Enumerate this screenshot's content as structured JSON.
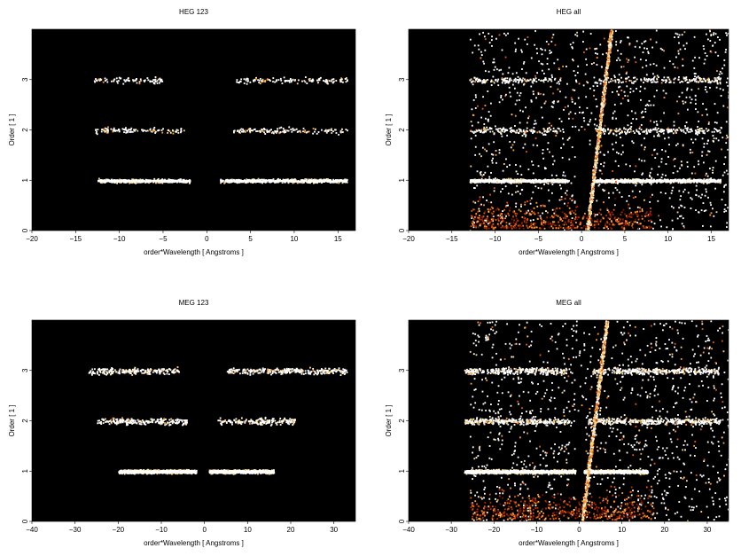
{
  "chart_data": [
    {
      "type": "heatmap",
      "title": "HEG 123",
      "xlabel": "order*Wavelength [ Angstroms ]",
      "ylabel": "Order [ 1 ]",
      "xlim": [
        -20,
        17
      ],
      "ylim": [
        0,
        4
      ],
      "xticks": [
        -20,
        -15,
        -10,
        -5,
        0,
        5,
        10,
        15
      ],
      "yticks": [
        0,
        1,
        2,
        3
      ],
      "background": "#000000",
      "bands": [
        {
          "order": 1,
          "segments": [
            [
              -12.5,
              -2
            ],
            [
              1.5,
              16
            ]
          ],
          "intensity": "high"
        },
        {
          "order": 2,
          "segments": [
            [
              -13,
              -2.5
            ],
            [
              3,
              16
            ]
          ],
          "intensity": "low"
        },
        {
          "order": 3,
          "segments": [
            [
              -13,
              -5
            ],
            [
              3,
              16
            ]
          ],
          "intensity": "low"
        }
      ],
      "diagonal_streak": false
    },
    {
      "type": "heatmap",
      "title": "HEG all",
      "xlabel": "order*Wavelength [ Angstroms ]",
      "ylabel": "Order [ 1 ]",
      "xlim": [
        -20,
        17
      ],
      "ylim": [
        0,
        4
      ],
      "xticks": [
        -20,
        -15,
        -10,
        -5,
        0,
        5,
        10,
        15
      ],
      "yticks": [
        0,
        1,
        2,
        3
      ],
      "background": "#000000",
      "bands": [
        {
          "order": 1,
          "segments": [
            [
              -13,
              -1.5
            ],
            [
              1.5,
              16
            ]
          ],
          "intensity": "high"
        },
        {
          "order": 2,
          "segments": [
            [
              -13,
              -2.5
            ],
            [
              1.5,
              16
            ]
          ],
          "intensity": "low"
        },
        {
          "order": 3,
          "segments": [
            [
              -13,
              -2.5
            ],
            [
              1.5,
              16
            ]
          ],
          "intensity": "low"
        }
      ],
      "diagonal_streak": true
    },
    {
      "type": "heatmap",
      "title": "MEG 123",
      "xlabel": "order*Wavelength [ Angstroms ]",
      "ylabel": "Order [ 1 ]",
      "xlim": [
        -40,
        35
      ],
      "ylim": [
        0,
        4
      ],
      "xticks": [
        -40,
        -30,
        -20,
        -10,
        0,
        10,
        20,
        30
      ],
      "yticks": [
        0,
        1,
        2,
        3
      ],
      "background": "#000000",
      "bands": [
        {
          "order": 1,
          "segments": [
            [
              -20,
              -2
            ],
            [
              1,
              16
            ]
          ],
          "intensity": "high"
        },
        {
          "order": 2,
          "segments": [
            [
              -25,
              -4
            ],
            [
              3,
              21
            ]
          ],
          "intensity": "low"
        },
        {
          "order": 3,
          "segments": [
            [
              -27,
              -6
            ],
            [
              5,
              33
            ]
          ],
          "intensity": "low"
        }
      ],
      "diagonal_streak": false
    },
    {
      "type": "heatmap",
      "title": "MEG all",
      "xlabel": "order*Wavelength [ Angstroms ]",
      "ylabel": "Order [ 1 ]",
      "xlim": [
        -40,
        35
      ],
      "ylim": [
        0,
        4
      ],
      "xticks": [
        -40,
        -30,
        -20,
        -10,
        0,
        10,
        20,
        30
      ],
      "yticks": [
        0,
        1,
        2,
        3
      ],
      "background": "#000000",
      "bands": [
        {
          "order": 1,
          "segments": [
            [
              -27,
              -1
            ],
            [
              1,
              16
            ]
          ],
          "intensity": "high"
        },
        {
          "order": 2,
          "segments": [
            [
              -27,
              -2
            ],
            [
              2,
              33
            ]
          ],
          "intensity": "low"
        },
        {
          "order": 3,
          "segments": [
            [
              -27,
              -3
            ],
            [
              3,
              33
            ]
          ],
          "intensity": "low"
        }
      ],
      "diagonal_streak": true
    }
  ]
}
